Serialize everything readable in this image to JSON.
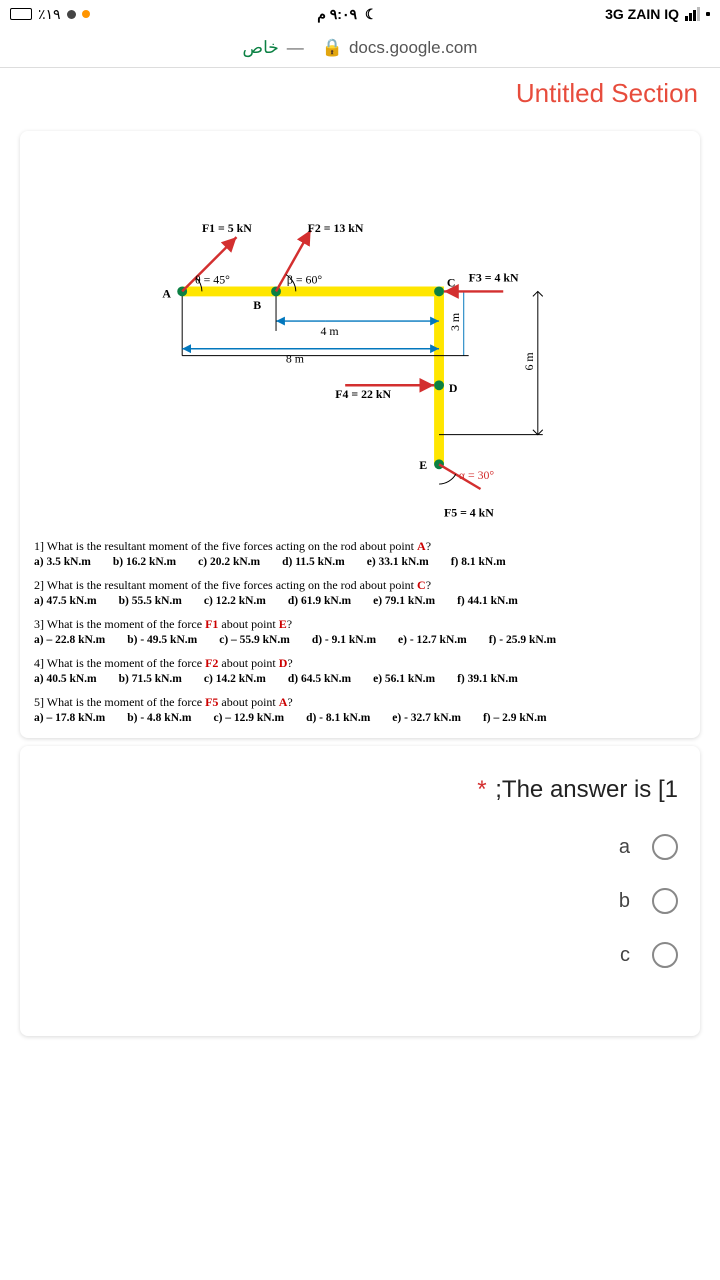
{
  "status": {
    "battery": "٪١٩",
    "location_dot": "#ffa500",
    "time": "٩:٠٩ م",
    "carrier": "3G  ZAIN IQ"
  },
  "url_bar": {
    "left_text": "خاص",
    "dash": "—",
    "domain": "docs.google.com"
  },
  "section_title": "Untitled Section",
  "diagram": {
    "F1": "F1 = 5 kN",
    "F2": "F2 = 13 kN",
    "F3": "F3 = 4 kN",
    "F4": "F4 = 22 kN",
    "F5": "F5 = 4 kN",
    "theta": "θ = 45°",
    "beta": "β = 60°",
    "alpha": "α = 30°",
    "len_4m": "4 m",
    "len_8m": "8 m",
    "len_3m": "3 m",
    "len_6m": "6 m",
    "A": "A",
    "B": "B",
    "C": "C",
    "D": "D",
    "E": "E"
  },
  "questions": [
    {
      "text_pre": "1] What is the resultant moment of the five forces acting on the rod about point ",
      "em": "A",
      "text_post": "?",
      "opts": [
        "a) 3.5 kN.m",
        "b) 16.2 kN.m",
        "c) 20.2 kN.m",
        "d) 11.5 kN.m",
        "e) 33.1 kN.m",
        "f) 8.1 kN.m"
      ]
    },
    {
      "text_pre": "2] What is the resultant moment of the five forces acting on the rod about point ",
      "em": "C",
      "text_post": "?",
      "opts": [
        "a) 47.5 kN.m",
        "b) 55.5 kN.m",
        "c) 12.2 kN.m",
        "d) 61.9 kN.m",
        "e) 79.1 kN.m",
        "f) 44.1 kN.m"
      ]
    },
    {
      "text_pre": "3] What is the moment of the force ",
      "em": "F1",
      "text_mid": " about point ",
      "em2": "E",
      "text_post": "?",
      "opts": [
        "a) – 22.8 kN.m",
        "b) - 49.5 kN.m",
        "c) – 55.9 kN.m",
        "d) - 9.1 kN.m",
        "e) - 12.7 kN.m",
        "f) - 25.9 kN.m"
      ]
    },
    {
      "text_pre": "4] What is the moment of the force ",
      "em": "F2",
      "text_mid": " about point ",
      "em2": "D",
      "text_post": "?",
      "opts": [
        "a) 40.5 kN.m",
        "b) 71.5 kN.m",
        "c) 14.2 kN.m",
        "d) 64.5 kN.m",
        "e) 56.1 kN.m",
        "f) 39.1 kN.m"
      ]
    },
    {
      "text_pre": "5] What is the moment of the force ",
      "em": "F5",
      "text_mid": " about point ",
      "em2": "A",
      "text_post": "?",
      "opts": [
        "a) – 17.8 kN.m",
        "b) - 4.8 kN.m",
        "c) – 12.9 kN.m",
        "d) - 8.1 kN.m",
        "e) - 32.7 kN.m",
        "f) – 2.9 kN.m"
      ]
    }
  ],
  "answer": {
    "title": ";The answer is [1",
    "options": [
      "a",
      "b",
      "c"
    ]
  },
  "colors": {
    "accent": "#e74c3c",
    "highlight_yellow": "#ffe600",
    "force_red": "#d32f2f",
    "dim_blue": "#0277bd"
  }
}
